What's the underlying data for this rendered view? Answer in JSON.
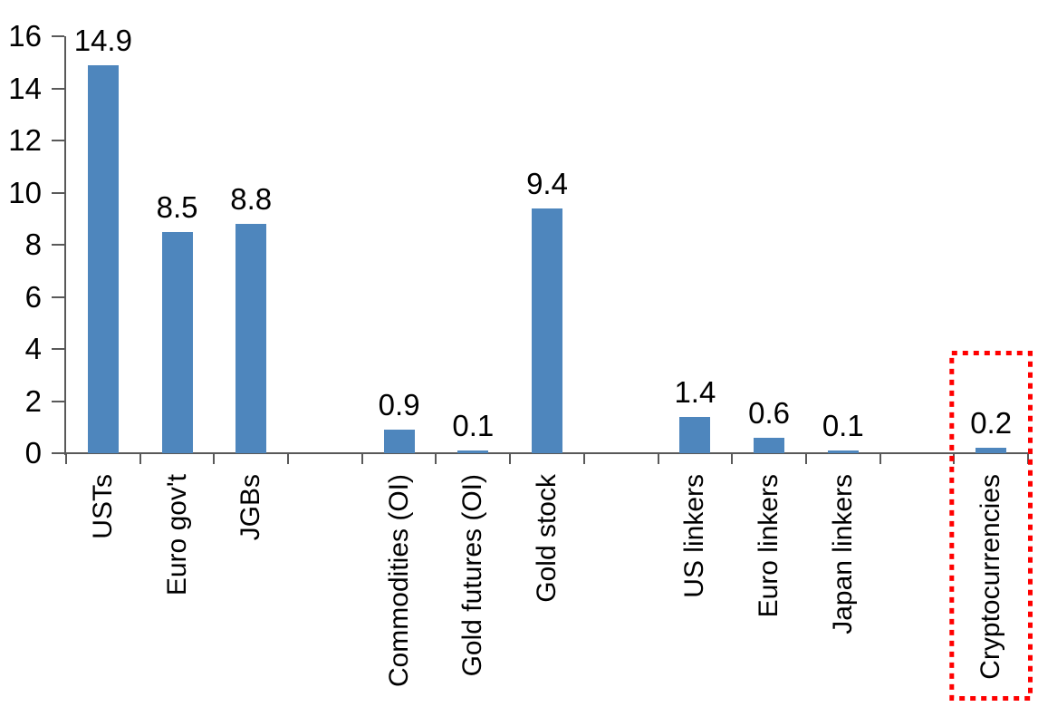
{
  "chart_data": {
    "type": "bar",
    "title": "",
    "xlabel": "",
    "ylabel": "",
    "ylim": [
      0,
      16
    ],
    "ytick_step": 2,
    "ytick_labels": [
      "0",
      "2",
      "4",
      "6",
      "8",
      "10",
      "12",
      "14",
      "16"
    ],
    "grid": false,
    "legend": null,
    "categories": [
      "USTs",
      "Euro gov't",
      "JGBs",
      "Commodities (OI)",
      "Gold futures (OI)",
      "Gold stock",
      "US linkers",
      "Euro linkers",
      "Japan linkers",
      "Cryptocurrencies"
    ],
    "values": [
      14.9,
      8.5,
      8.8,
      0.9,
      0.1,
      9.4,
      1.4,
      0.6,
      0.1,
      0.2
    ],
    "value_labels": [
      "14.9",
      "8.5",
      "8.8",
      "0.9",
      "0.1",
      "9.4",
      "1.4",
      "0.6",
      "0.1",
      "0.2"
    ],
    "groups": [
      {
        "categories": [
          "USTs",
          "Euro gov't",
          "JGBs"
        ],
        "values": [
          14.9,
          8.5,
          8.8
        ],
        "value_labels": [
          "14.9",
          "8.5",
          "8.8"
        ]
      },
      {
        "categories": [
          "Commodities (OI)",
          "Gold futures (OI)",
          "Gold stock"
        ],
        "values": [
          0.9,
          0.1,
          9.4
        ],
        "value_labels": [
          "0.9",
          "0.1",
          "9.4"
        ]
      },
      {
        "categories": [
          "US linkers",
          "Euro linkers",
          "Japan linkers"
        ],
        "values": [
          1.4,
          0.6,
          0.1
        ],
        "value_labels": [
          "1.4",
          "0.6",
          "0.1"
        ]
      },
      {
        "categories": [
          "Cryptocurrencies"
        ],
        "values": [
          0.2
        ],
        "value_labels": [
          "0.2"
        ]
      }
    ],
    "highlight": {
      "category": "Cryptocurrencies",
      "style": "dotted-box",
      "color": "#ff0000"
    },
    "colors": {
      "bar": "#4e86bd",
      "axis": "#595959",
      "text": "#000000",
      "highlight": "#ff0000",
      "background": "#ffffff"
    }
  }
}
